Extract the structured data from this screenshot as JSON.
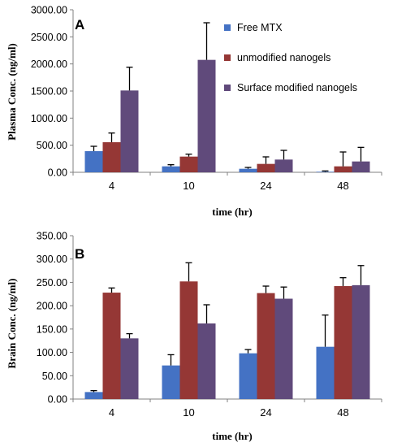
{
  "chart_data": [
    {
      "type": "bar",
      "panel_label": "A",
      "categories": [
        "4",
        "10",
        "24",
        "48"
      ],
      "series": [
        {
          "name": "Free MTX",
          "color": "#4472C4",
          "values": [
            390,
            110,
            65,
            10
          ],
          "errors": [
            90,
            30,
            25,
            15
          ]
        },
        {
          "name": "unmodified nanogels",
          "color": "#953735",
          "values": [
            555,
            290,
            155,
            110
          ],
          "errors": [
            170,
            45,
            130,
            265
          ]
        },
        {
          "name": "Surface modified nanogels",
          "color": "#604A7B",
          "values": [
            1510,
            2075,
            235,
            200
          ],
          "errors": [
            430,
            685,
            170,
            260
          ]
        }
      ],
      "ytick_labels": [
        "0.00",
        "500.00",
        "1000.00",
        "1500.00",
        "2000.00",
        "2500.00",
        "3000.00"
      ],
      "ylim": [
        0,
        3000
      ],
      "xlabel": "time (hr)",
      "ylabel": "Plasma Conc. (ng/ml)",
      "legend": "top-right",
      "grid": false
    },
    {
      "type": "bar",
      "panel_label": "B",
      "categories": [
        "4",
        "10",
        "24",
        "48"
      ],
      "series": [
        {
          "name": "Free MTX",
          "color": "#4472C4",
          "values": [
            15,
            72,
            98,
            112
          ],
          "errors": [
            3,
            23,
            8,
            68
          ]
        },
        {
          "name": "unmodified nanogels",
          "color": "#953735",
          "values": [
            228,
            252,
            227,
            242
          ],
          "errors": [
            10,
            40,
            15,
            18
          ]
        },
        {
          "name": "Surface modified nanogels",
          "color": "#604A7B",
          "values": [
            130,
            162,
            215,
            244
          ],
          "errors": [
            10,
            40,
            25,
            42
          ]
        }
      ],
      "ytick_labels": [
        "0.00",
        "50.00",
        "100.00",
        "150.00",
        "200.00",
        "250.00",
        "300.00",
        "350.00"
      ],
      "ylim": [
        0,
        350
      ],
      "xlabel": "time (hr)",
      "ylabel": "Brain Conc. (ng/ml)",
      "grid": false
    }
  ]
}
